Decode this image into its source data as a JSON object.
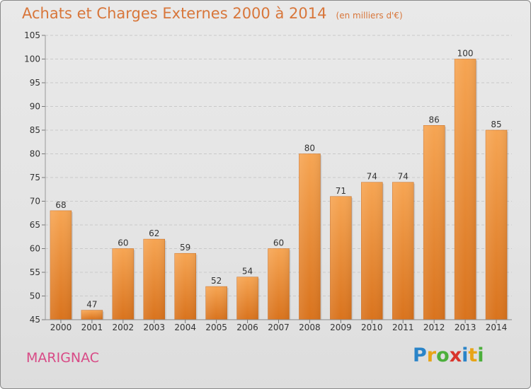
{
  "chart_data": {
    "type": "bar",
    "title": "Achats et Charges Externes 2000 à 2014",
    "subtitle": "(en milliers d'€)",
    "categories": [
      "2000",
      "2001",
      "2002",
      "2003",
      "2004",
      "2005",
      "2006",
      "2007",
      "2008",
      "2009",
      "2010",
      "2011",
      "2012",
      "2013",
      "2014"
    ],
    "values": [
      68,
      47,
      60,
      62,
      59,
      52,
      54,
      60,
      80,
      71,
      74,
      74,
      86,
      100,
      85
    ],
    "ylim": [
      45,
      105
    ],
    "yticks": [
      45,
      50,
      55,
      60,
      65,
      70,
      75,
      80,
      85,
      90,
      95,
      100,
      105
    ],
    "xlabel": "",
    "ylabel": "",
    "grid": true,
    "bar_color": "#f09a45"
  },
  "footer": {
    "place": "MARIGNAC",
    "logo_letters": [
      "P",
      "r",
      "o",
      "x",
      "i",
      "t",
      "i"
    ],
    "logo_colors": [
      "#2a84c8",
      "#e8a417",
      "#4caf3c",
      "#d9342b",
      "#2a84c8",
      "#e8a417",
      "#4caf3c"
    ]
  }
}
